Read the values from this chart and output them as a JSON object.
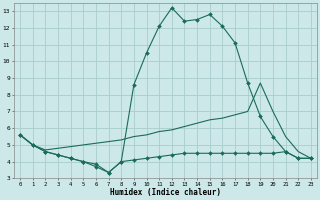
{
  "xlabel": "Humidex (Indice chaleur)",
  "bg_color": "#cce8e8",
  "grid_color": "#aacccc",
  "line_color": "#1a6b5a",
  "xlim": [
    -0.5,
    23.5
  ],
  "ylim": [
    3,
    13.5
  ],
  "xticks": [
    0,
    1,
    2,
    3,
    4,
    5,
    6,
    7,
    8,
    9,
    10,
    11,
    12,
    13,
    14,
    15,
    16,
    17,
    18,
    19,
    20,
    21,
    22,
    23
  ],
  "yticks": [
    3,
    4,
    5,
    6,
    7,
    8,
    9,
    10,
    11,
    12,
    13
  ],
  "line1_x": [
    0,
    1,
    2,
    3,
    4,
    5,
    6,
    7,
    8,
    9,
    10,
    11,
    12,
    13,
    14,
    15,
    16,
    17,
    18,
    19,
    20,
    21,
    22,
    23
  ],
  "line1_y": [
    5.6,
    5.0,
    4.6,
    4.4,
    4.2,
    4.0,
    3.7,
    3.35,
    4.0,
    8.6,
    10.5,
    12.1,
    13.2,
    12.4,
    12.5,
    12.8,
    12.1,
    11.1,
    8.7,
    6.7,
    5.5,
    4.6,
    4.2,
    4.2
  ],
  "line2_x": [
    0,
    1,
    2,
    3,
    4,
    5,
    6,
    7,
    8,
    9,
    10,
    11,
    12,
    13,
    14,
    15,
    16,
    17,
    18,
    19,
    20,
    21,
    22,
    23
  ],
  "line2_y": [
    5.6,
    5.0,
    4.7,
    4.8,
    4.9,
    5.0,
    5.1,
    5.2,
    5.3,
    5.5,
    5.6,
    5.8,
    5.9,
    6.1,
    6.3,
    6.5,
    6.6,
    6.8,
    7.0,
    8.7,
    7.0,
    5.5,
    4.6,
    4.2
  ],
  "line3_x": [
    0,
    1,
    2,
    3,
    4,
    5,
    6,
    7,
    8,
    9,
    10,
    11,
    12,
    13,
    14,
    15,
    16,
    17,
    18,
    19,
    20,
    21,
    22,
    23
  ],
  "line3_y": [
    5.6,
    5.0,
    4.6,
    4.4,
    4.2,
    4.0,
    3.85,
    3.35,
    4.0,
    4.1,
    4.2,
    4.3,
    4.4,
    4.5,
    4.5,
    4.5,
    4.5,
    4.5,
    4.5,
    4.5,
    4.5,
    4.6,
    4.2,
    4.2
  ]
}
